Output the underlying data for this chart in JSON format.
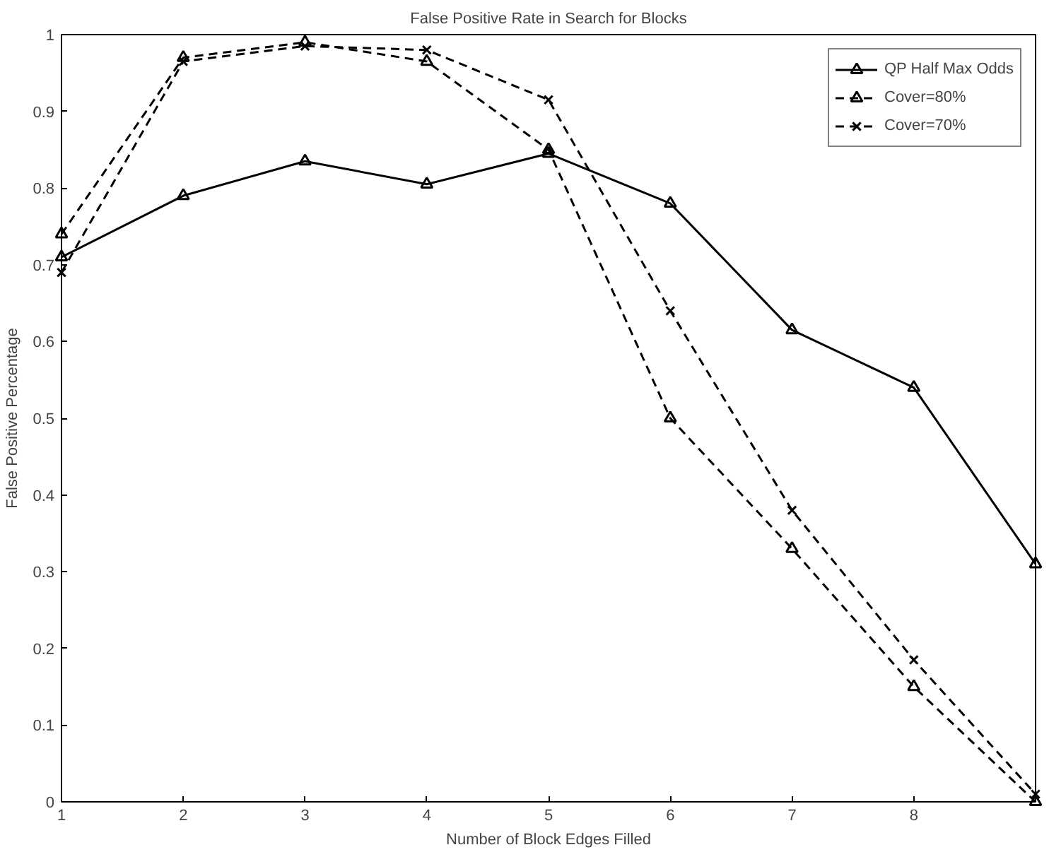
{
  "chart_data": {
    "type": "line",
    "title": "False Positive Rate in Search for Blocks",
    "xlabel": "Number of Block Edges Filled",
    "ylabel": "False Positive Percentage",
    "x": [
      1,
      2,
      3,
      4,
      5,
      6,
      7,
      8,
      9
    ],
    "xlim": [
      1,
      9
    ],
    "xticks": [
      1,
      2,
      3,
      4,
      5,
      6,
      7,
      8
    ],
    "ylim": [
      0,
      1
    ],
    "yticks": [
      0,
      0.1,
      0.2,
      0.3,
      0.4,
      0.5,
      0.6,
      0.7,
      0.8,
      0.9,
      1
    ],
    "legend": "top right",
    "grid": false,
    "series": [
      {
        "name": "QP Half Max Odds",
        "color": "#000000",
        "marker": "triangle",
        "line_style": "solid",
        "values": [
          0.71,
          0.79,
          0.835,
          0.805,
          0.845,
          0.78,
          0.615,
          0.54,
          0.31
        ]
      },
      {
        "name": "Cover=80%",
        "color": "#000000",
        "marker": "triangle",
        "line_style": "dashed",
        "values": [
          0.74,
          0.97,
          0.99,
          0.965,
          0.85,
          0.5,
          0.33,
          0.15,
          0.0
        ]
      },
      {
        "name": "Cover=70%",
        "color": "#000000",
        "marker": "cross",
        "line_style": "dashed",
        "values": [
          0.69,
          0.965,
          0.985,
          0.98,
          0.915,
          0.64,
          0.38,
          0.185,
          0.01
        ]
      }
    ]
  }
}
